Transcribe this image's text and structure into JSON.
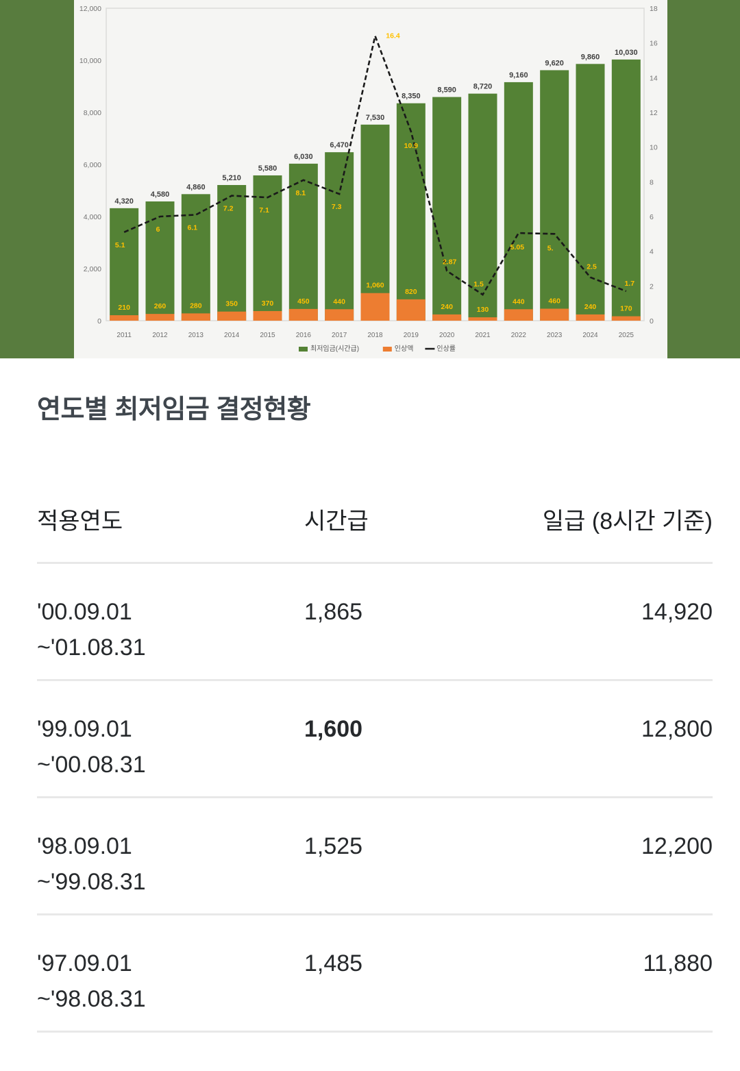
{
  "chart_data": {
    "type": "bar",
    "categories": [
      "2011",
      "2012",
      "2013",
      "2014",
      "2015",
      "2016",
      "2017",
      "2018",
      "2019",
      "2020",
      "2021",
      "2022",
      "2023",
      "2024",
      "2025"
    ],
    "series": [
      {
        "name": "최저임금(시간급)",
        "type": "bar",
        "values": [
          4320,
          4580,
          4860,
          5210,
          5580,
          6030,
          6470,
          7530,
          8350,
          8590,
          8720,
          9160,
          9620,
          9860,
          10030
        ]
      },
      {
        "name": "인상액",
        "type": "bar",
        "values": [
          210,
          260,
          280,
          350,
          370,
          450,
          440,
          1060,
          820,
          240,
          130,
          440,
          460,
          240,
          170
        ]
      },
      {
        "name": "인상률",
        "type": "line",
        "values": [
          5.1,
          6,
          6.1,
          7.2,
          7.1,
          8.1,
          7.3,
          16.4,
          10.9,
          2.87,
          1.5,
          5.05,
          5.0,
          2.5,
          1.7
        ]
      }
    ],
    "bar_value_labels": [
      "4,320",
      "4,580",
      "4,860",
      "5,210",
      "5,580",
      "6,030",
      "6,470",
      "7,530",
      "8,350",
      "8,590",
      "8,720",
      "9,160",
      "9,620",
      "9,860",
      "10,030"
    ],
    "increase_amount_labels": [
      "210",
      "260",
      "280",
      "350",
      "370",
      "450",
      "440",
      "1,060",
      "820",
      "240",
      "130",
      "440",
      "460",
      "240",
      "170"
    ],
    "rate_labels": [
      "5.1",
      "6",
      "6.1",
      "7.2",
      "7.1",
      "8.1",
      "7.3",
      "16.4",
      "10.9",
      "2.87",
      "1.5",
      "5.05",
      "5.",
      "2.5",
      "1.7"
    ],
    "left_axis": {
      "min": 0,
      "max": 12000,
      "step": 2000,
      "labels": [
        "12,000",
        "10,000",
        "8,000",
        "6,000",
        "4,000",
        "2,000",
        "0"
      ]
    },
    "right_axis": {
      "min": 0,
      "max": 18,
      "step": 2,
      "labels": [
        "18",
        "16",
        "14",
        "12",
        "10",
        "8",
        "6",
        "4",
        "2",
        "0"
      ]
    },
    "legend": [
      "최저임금(시간급)",
      "인상액",
      "인상률"
    ],
    "legend_position": "bottom",
    "grid": false,
    "colors": {
      "bar_green": "#548235",
      "bar_orange": "#ed7d31",
      "label_yellow": "#ffc000",
      "label_dark": "#404040",
      "line_black": "#1a1a1a",
      "side_band_green": "#587c3e",
      "chart_bg": "#f5f5f3",
      "axis_text": "#737373",
      "plot_border": "#dcdcda"
    }
  },
  "section": {
    "title": "연도별 최저임금 결정현황"
  },
  "table": {
    "headers": [
      "적용연도",
      "시간급",
      "일급 (8시간 기준)"
    ],
    "rows": [
      {
        "period": "'00.09.01\n~'01.08.31",
        "hourly": "1,865",
        "daily": "14,920"
      },
      {
        "period": "'99.09.01\n~'00.08.31",
        "hourly": "1,600",
        "daily": "12,800"
      },
      {
        "period": "'98.09.01\n~'99.08.31",
        "hourly": "1,525",
        "daily": "12,200"
      },
      {
        "period": "'97.09.01\n~'98.08.31",
        "hourly": "1,485",
        "daily": "11,880"
      }
    ]
  }
}
